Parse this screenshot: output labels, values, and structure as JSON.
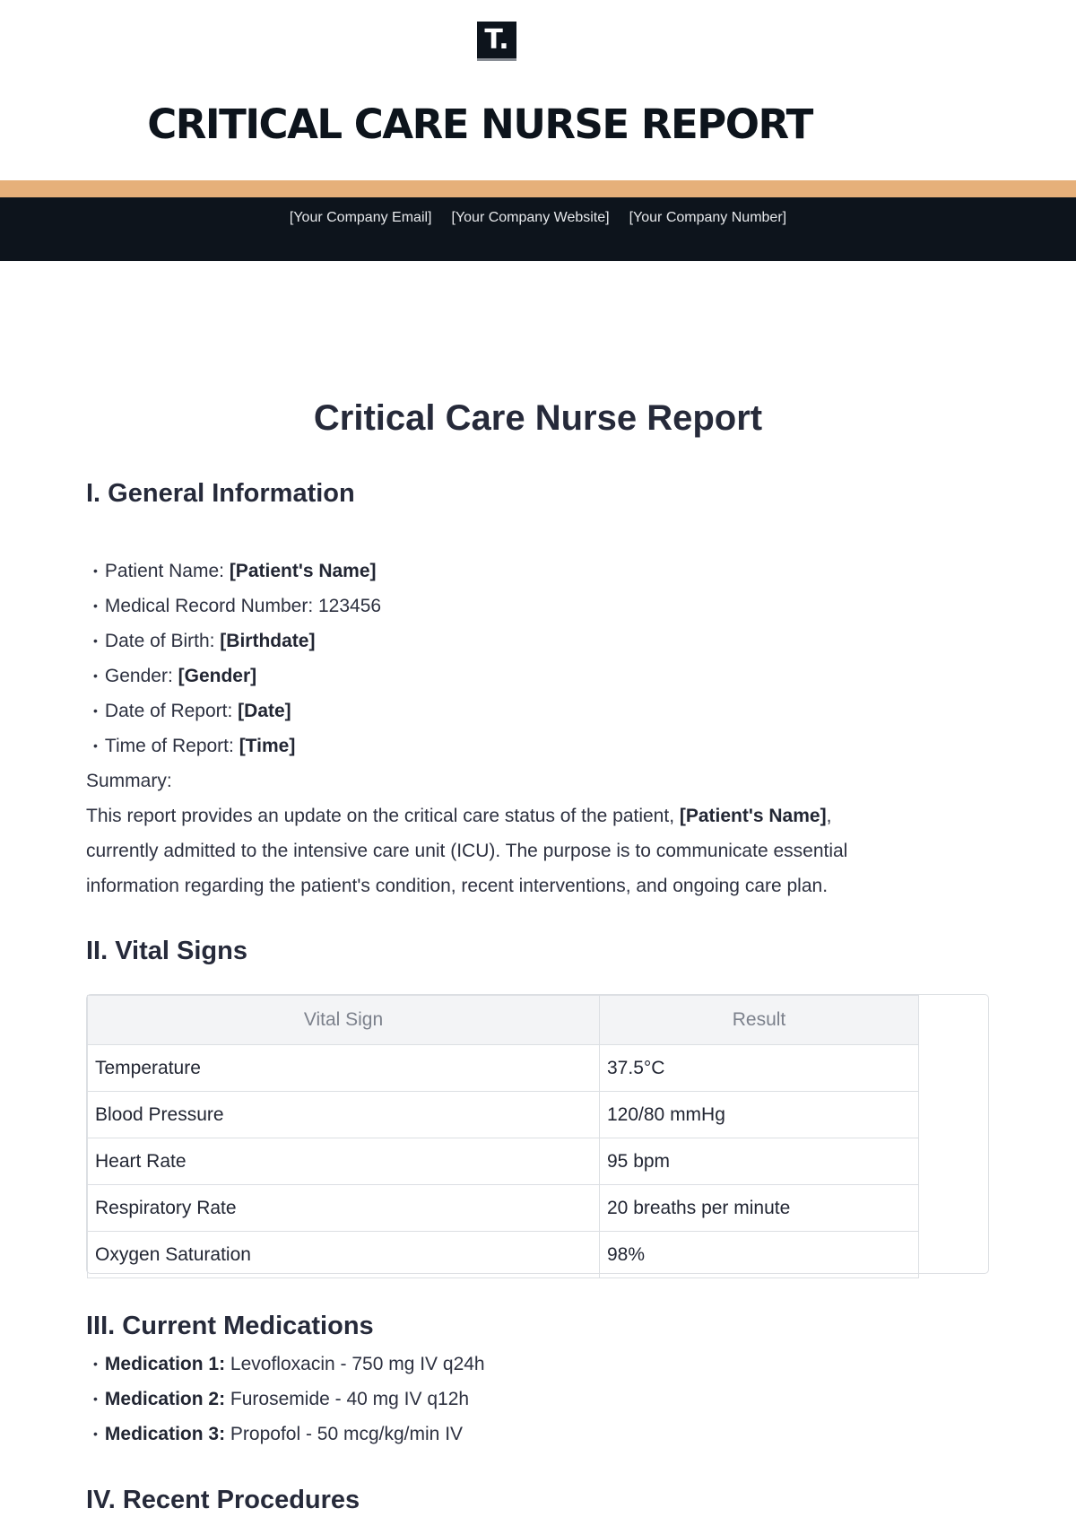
{
  "brand": {
    "logo_text": "T.",
    "title": "CRITICAL CARE NURSE REPORT",
    "contacts": [
      "[Your Company Email]",
      "[Your Company Website]",
      "[Your Company Number]"
    ],
    "colors": {
      "accent": "#e6b07a",
      "dark": "#0d141c"
    }
  },
  "doc": {
    "title": "Critical Care Nurse Report"
  },
  "general": {
    "heading": "I. General Information",
    "items": [
      {
        "label": "Patient Name: ",
        "value": "[Patient's Name]"
      },
      {
        "label": "Medical Record Number: 123456",
        "value": ""
      },
      {
        "label": "Date of Birth: ",
        "value": "[Birthdate]"
      },
      {
        "label": "Gender: ",
        "value": "[Gender]"
      },
      {
        "label": "Date of Report: ",
        "value": "[Date]"
      },
      {
        "label": "Time of Report: ",
        "value": "[Time]"
      }
    ],
    "summary_label": "Summary:",
    "summary_pre": "This report provides an update on the critical care status of the patient, ",
    "summary_name": "[Patient's Name]",
    "summary_post": ",",
    "summary_line2": "currently admitted to the intensive care unit (ICU). The purpose is to communicate essential",
    "summary_line3": "information regarding the patient's condition, recent interventions, and ongoing care plan."
  },
  "vitals": {
    "heading": "II. Vital Signs",
    "columns": [
      "Vital Sign",
      "Result"
    ],
    "rows": [
      [
        "Temperature",
        "37.5°C"
      ],
      [
        "Blood Pressure",
        "120/80 mmHg"
      ],
      [
        "Heart Rate",
        "95 bpm"
      ],
      [
        "Respiratory Rate",
        "20 breaths per minute"
      ],
      [
        "Oxygen Saturation",
        "98%"
      ]
    ]
  },
  "medications": {
    "heading": "III. Current Medications",
    "items": [
      {
        "label": "Medication 1:",
        "value": " Levofloxacin - 750 mg IV q24h"
      },
      {
        "label": "Medication 2:",
        "value": " Furosemide - 40 mg IV q12h"
      },
      {
        "label": "Medication 3:",
        "value": " Propofol - 50 mcg/kg/min IV"
      }
    ]
  },
  "procedures": {
    "heading": "IV. Recent Procedures"
  }
}
